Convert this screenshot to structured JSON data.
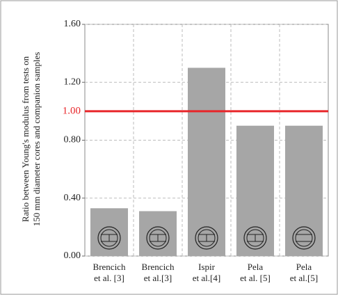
{
  "chart_data": {
    "type": "bar",
    "ylabel": [
      "Ratio between Young's modulus from tests on",
      "150 mm diameter cores and companion samples"
    ],
    "categories": [
      "Brencich\net al. [3]",
      "Brencich\net al.[3]",
      "Ispir\net al.[4]",
      "Pela\net al. [5]",
      "Pela\net al.[5]"
    ],
    "values": [
      0.33,
      0.31,
      1.3,
      0.9,
      0.9
    ],
    "color": "#a6a6a6",
    "ylim": [
      0,
      1.6
    ],
    "yticks": [
      {
        "value": 0,
        "label": "0.00"
      },
      {
        "value": 0.4,
        "label": "0.40"
      },
      {
        "value": 0.8,
        "label": "0.80"
      },
      {
        "value": 1.2,
        "label": "1.20"
      },
      {
        "value": 1.6,
        "label": "1.60"
      }
    ],
    "grid": true,
    "reference_line": {
      "value": 1.0,
      "label": "1.00",
      "color": "#e8262a"
    }
  }
}
